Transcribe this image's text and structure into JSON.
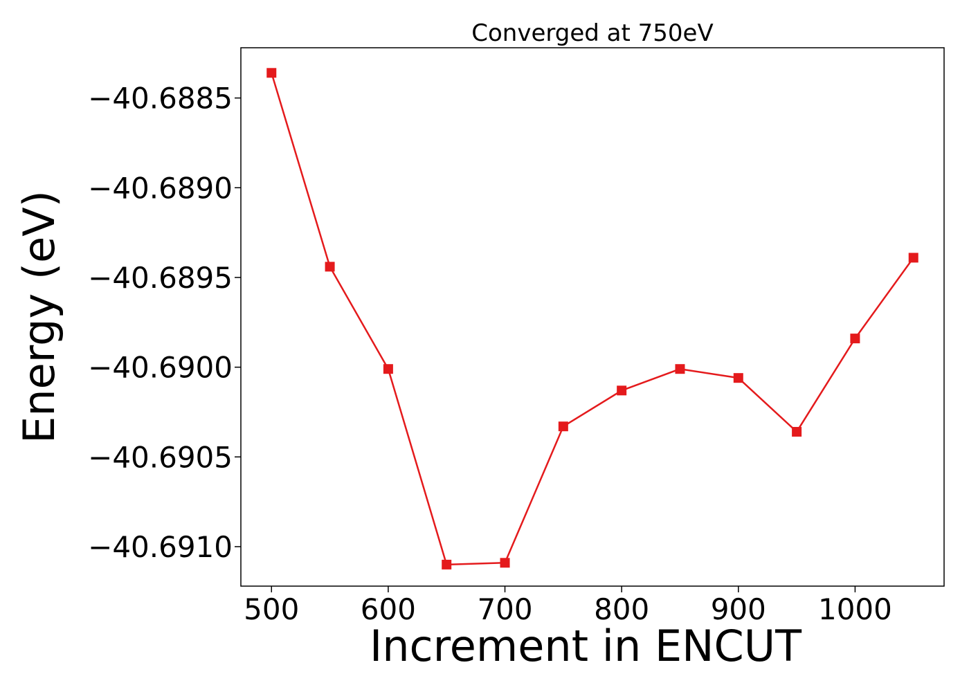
{
  "chart_data": {
    "type": "line",
    "title": "Converged at 750eV",
    "xlabel": "Increment in ENCUT",
    "ylabel": "Energy (eV)",
    "x": [
      500,
      550,
      600,
      650,
      700,
      750,
      800,
      850,
      900,
      950,
      1000,
      1050
    ],
    "series": [
      {
        "values": [
          -40.68836,
          -40.68944,
          -40.69001,
          -40.6911,
          -40.69109,
          -40.69033,
          -40.69013,
          -40.69001,
          -40.69006,
          -40.69036,
          -40.68984,
          -40.68939
        ],
        "color": "#e41a1c",
        "marker": "square"
      }
    ],
    "xticks": [
      500,
      600,
      700,
      800,
      900,
      1000
    ],
    "xtick_labels": [
      "500",
      "600",
      "700",
      "800",
      "900",
      "1000"
    ],
    "yticks": [
      -40.6885,
      -40.689,
      -40.6895,
      -40.69,
      -40.6905,
      -40.691
    ],
    "ytick_labels": [
      "−40.6885",
      "−40.6890",
      "−40.6895",
      "−40.6900",
      "−40.6905",
      "−40.6910"
    ],
    "xlim": [
      473.75,
      1076.25
    ],
    "ylim": [
      -40.69122,
      -40.68822
    ],
    "grid": false,
    "legend": "none"
  }
}
